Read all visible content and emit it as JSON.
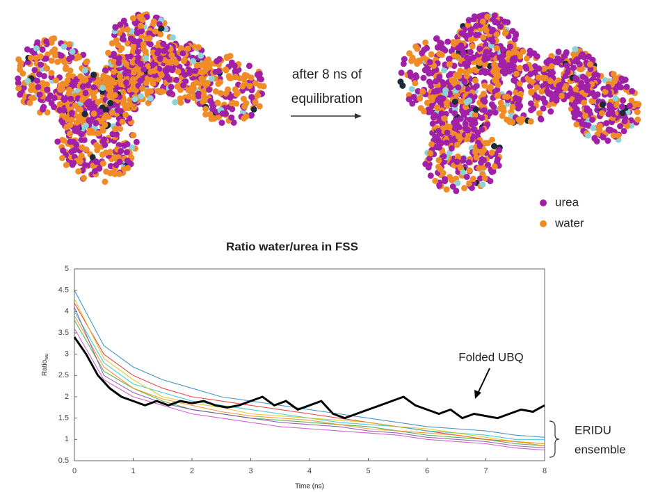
{
  "chart_data": {
    "type": "line",
    "title": "Ratio water/urea in FSS",
    "xlabel": "Time (ns)",
    "ylabel": "Ratio",
    "ylabel_sub": "wu",
    "xlim": [
      0,
      8
    ],
    "xticks": [
      0,
      1,
      2,
      3,
      4,
      5,
      6,
      7,
      8
    ],
    "ylim": [
      0.5,
      5
    ],
    "yticks": [
      0.5,
      1,
      1.5,
      2,
      2.5,
      3,
      3.5,
      4,
      4.5,
      5
    ],
    "legend": [
      {
        "label": "urea",
        "color": "#a020a8"
      },
      {
        "label": "water",
        "color": "#f08c28"
      }
    ],
    "annotations": {
      "line1": "after 8 ns of",
      "line2": "equilibration",
      "ensemble1": "ERIDU",
      "ensemble2": "ensemble"
    },
    "series": [
      {
        "color": "#e41a1c",
        "x": [
          0,
          0.5,
          1,
          1.5,
          2,
          2.5,
          3,
          3.5,
          4,
          4.5,
          5,
          5.5,
          6,
          6.5,
          7,
          7.5,
          8
        ],
        "values": [
          4.2,
          3.0,
          2.5,
          2.2,
          2.0,
          1.9,
          1.8,
          1.7,
          1.6,
          1.5,
          1.4,
          1.3,
          1.2,
          1.1,
          1.0,
          0.95,
          0.9
        ]
      },
      {
        "color": "#2ca02c",
        "x": [
          0,
          0.5,
          1,
          1.5,
          2,
          2.5,
          3,
          3.5,
          4,
          4.5,
          5,
          5.5,
          6,
          6.5,
          7,
          7.5,
          8
        ],
        "values": [
          3.8,
          2.6,
          2.2,
          1.9,
          1.7,
          1.6,
          1.5,
          1.45,
          1.4,
          1.35,
          1.3,
          1.2,
          1.1,
          1.05,
          1.0,
          0.9,
          0.85
        ]
      },
      {
        "color": "#1f77b4",
        "x": [
          0,
          0.5,
          1,
          1.5,
          2,
          2.5,
          3,
          3.5,
          4,
          4.5,
          5,
          5.5,
          6,
          6.5,
          7,
          7.5,
          8
        ],
        "values": [
          4.5,
          3.2,
          2.7,
          2.4,
          2.2,
          2.0,
          1.9,
          1.8,
          1.7,
          1.6,
          1.5,
          1.4,
          1.3,
          1.25,
          1.2,
          1.1,
          1.05
        ]
      },
      {
        "color": "#c03cc0",
        "x": [
          0,
          0.5,
          1,
          1.5,
          2,
          2.5,
          3,
          3.5,
          4,
          4.5,
          5,
          5.5,
          6,
          6.5,
          7,
          7.5,
          8
        ],
        "values": [
          3.6,
          2.4,
          2.0,
          1.8,
          1.6,
          1.5,
          1.4,
          1.3,
          1.25,
          1.2,
          1.15,
          1.1,
          1.0,
          0.95,
          0.9,
          0.8,
          0.75
        ]
      },
      {
        "color": "#17becf",
        "x": [
          0,
          0.5,
          1,
          1.5,
          2,
          2.5,
          3,
          3.5,
          4,
          4.5,
          5,
          5.5,
          6,
          6.5,
          7,
          7.5,
          8
        ],
        "values": [
          4.0,
          2.8,
          2.3,
          2.1,
          1.9,
          1.8,
          1.7,
          1.6,
          1.5,
          1.4,
          1.35,
          1.3,
          1.2,
          1.15,
          1.1,
          1.0,
          1.0
        ]
      },
      {
        "color": "#d4c000",
        "x": [
          0,
          0.5,
          1,
          1.5,
          2,
          2.5,
          3,
          3.5,
          4,
          4.5,
          5,
          5.5,
          6,
          6.5,
          7,
          7.5,
          8
        ],
        "values": [
          4.3,
          2.9,
          2.4,
          2.0,
          1.85,
          1.75,
          1.6,
          1.55,
          1.5,
          1.45,
          1.4,
          1.3,
          1.25,
          1.15,
          1.05,
          0.95,
          0.9
        ]
      },
      {
        "color": "#ff7f0e",
        "x": [
          0,
          0.5,
          1,
          1.5,
          2,
          2.5,
          3,
          3.5,
          4,
          4.5,
          5,
          5.5,
          6,
          6.5,
          7,
          7.5,
          8
        ],
        "values": [
          3.9,
          2.7,
          2.2,
          1.95,
          1.8,
          1.65,
          1.55,
          1.5,
          1.45,
          1.35,
          1.25,
          1.2,
          1.15,
          1.1,
          1.0,
          0.95,
          0.85
        ]
      },
      {
        "color": "#7b3fa0",
        "x": [
          0,
          0.5,
          1,
          1.5,
          2,
          2.5,
          3,
          3.5,
          4,
          4.5,
          5,
          5.5,
          6,
          6.5,
          7,
          7.5,
          8
        ],
        "values": [
          4.1,
          2.5,
          2.1,
          1.85,
          1.7,
          1.6,
          1.5,
          1.4,
          1.35,
          1.3,
          1.2,
          1.15,
          1.05,
          1.0,
          0.95,
          0.85,
          0.8
        ]
      },
      {
        "name": "Folded UBQ",
        "color": "#000000",
        "x": [
          0,
          0.2,
          0.4,
          0.6,
          0.8,
          1,
          1.2,
          1.4,
          1.6,
          1.8,
          2,
          2.2,
          2.4,
          2.6,
          2.8,
          3,
          3.2,
          3.4,
          3.6,
          3.8,
          4,
          4.2,
          4.4,
          4.6,
          4.8,
          5,
          5.2,
          5.4,
          5.6,
          5.8,
          6,
          6.2,
          6.4,
          6.6,
          6.8,
          7,
          7.2,
          7.4,
          7.6,
          7.8,
          8
        ],
        "values": [
          3.4,
          3.0,
          2.5,
          2.2,
          2.0,
          1.9,
          1.8,
          1.9,
          1.8,
          1.9,
          1.85,
          1.9,
          1.8,
          1.75,
          1.8,
          1.9,
          2.0,
          1.8,
          1.9,
          1.7,
          1.8,
          1.9,
          1.6,
          1.5,
          1.6,
          1.7,
          1.8,
          1.9,
          2.0,
          1.8,
          1.7,
          1.6,
          1.7,
          1.5,
          1.6,
          1.55,
          1.5,
          1.6,
          1.7,
          1.65,
          1.8
        ]
      }
    ]
  }
}
